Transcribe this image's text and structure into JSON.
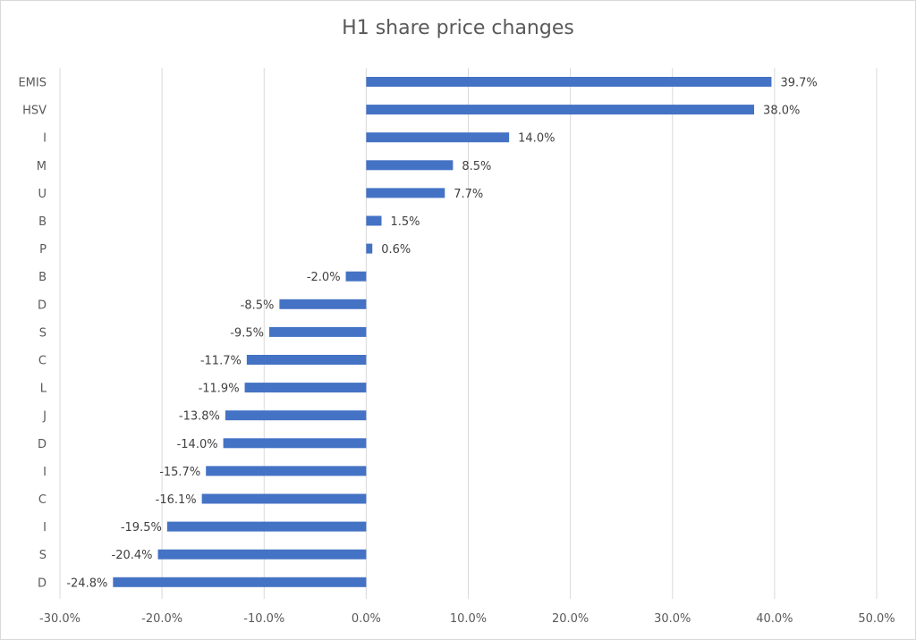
{
  "chart_data": {
    "type": "bar",
    "orientation": "horizontal",
    "title": "H1 share price changes",
    "categories": [
      "EMIS",
      "HSV",
      "I",
      "M",
      "U",
      "B",
      "P",
      "B",
      "D",
      "S",
      "C",
      "L",
      "J",
      "D",
      "I",
      "C",
      "I",
      "S",
      "D"
    ],
    "values": [
      39.7,
      38.0,
      14.0,
      8.5,
      7.7,
      1.5,
      0.6,
      -2.0,
      -8.5,
      -9.5,
      -11.7,
      -11.9,
      -13.8,
      -14.0,
      -15.7,
      -16.1,
      -19.5,
      -20.4,
      -24.8
    ],
    "data_labels": [
      "39.7%",
      "38.0%",
      "14.0%",
      "8.5%",
      "7.7%",
      "1.5%",
      "0.6%",
      "-2.0%",
      "-8.5%",
      "-9.5%",
      "-11.7%",
      "-11.9%",
      "-13.8%",
      "-14.0%",
      "-15.7%",
      "-16.1%",
      "-19.5%",
      "-20.4%",
      "-24.8%"
    ],
    "xlim": [
      -30,
      50
    ],
    "xticks": [
      -30,
      -20,
      -10,
      0,
      10,
      20,
      30,
      40,
      50
    ],
    "xtick_labels": [
      "-30.0%",
      "-20.0%",
      "-10.0%",
      "0.0%",
      "10.0%",
      "20.0%",
      "30.0%",
      "40.0%",
      "50.0%"
    ],
    "xlabel": "",
    "ylabel": "",
    "grid": "vertical",
    "bar_color": "#4472c4",
    "grid_color": "#d9d9d9"
  }
}
